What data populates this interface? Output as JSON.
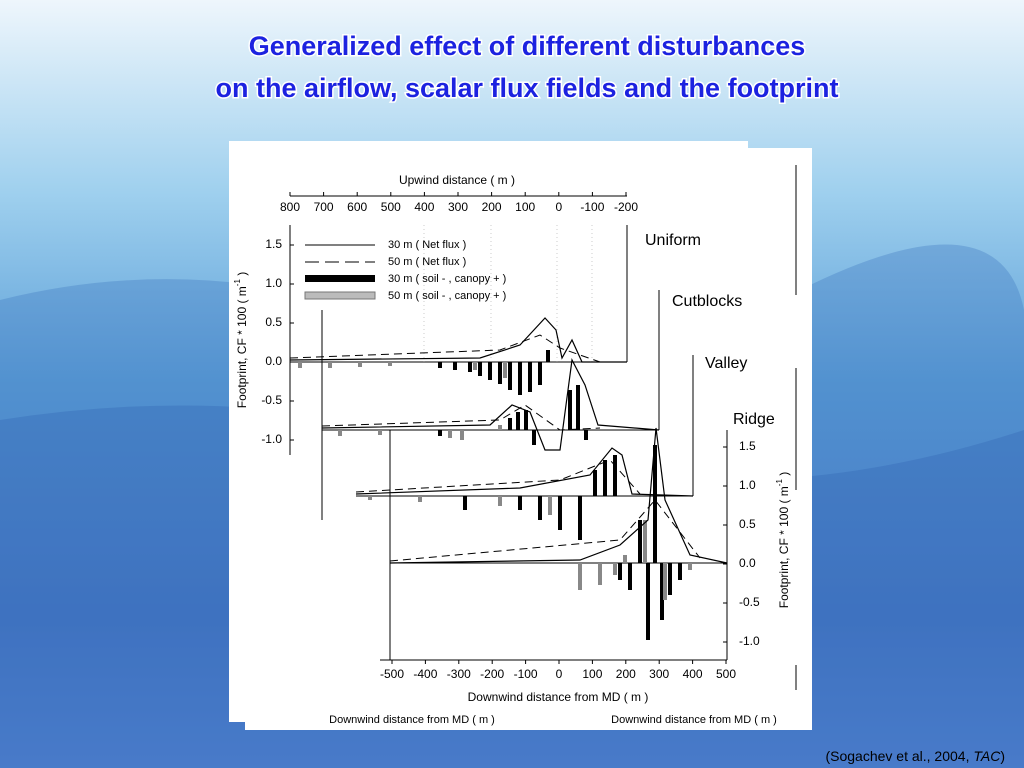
{
  "title": [
    "Generalized effect of different disturbances",
    "on the airflow, scalar flux fields and the footprint"
  ],
  "citation": {
    "before": "(Sogachev et al., 2004, ",
    "italic": "TAC",
    "after": ")"
  },
  "figure": {
    "top_axis_label": "Upwind distance ( m )",
    "top_ticks": [
      "800",
      "700",
      "600",
      "500",
      "400",
      "300",
      "200",
      "100",
      "0",
      "-100",
      "-200"
    ],
    "left_axis_label": {
      "text": "Footprint, CF * 100 ( m",
      "sup": "-1",
      "end": " )"
    },
    "left_ticks": [
      "1.5",
      "1.0",
      "0.5",
      "0.0",
      "-0.5",
      "-1.0"
    ],
    "right_axis_label": {
      "text": "Footprint, CF * 100 ( m",
      "sup": "-1",
      "end": " )"
    },
    "right_ticks": [
      "1.5",
      "1.0",
      "0.5",
      "0.0",
      "-0.5",
      "-1.0"
    ],
    "bottom_ticks": [
      "-500",
      "-400",
      "-300",
      "-200",
      "-100",
      "0",
      "100",
      "200",
      "300",
      "400",
      "500"
    ],
    "bottom_axis_label": "Downwind distance from MD ( m )",
    "back_labels": [
      "Downwind distance from MD ( m )",
      "Downwind distance from MD ( m )"
    ],
    "legend": [
      "30 m ( Net flux )",
      "50 m ( Net flux )",
      "30 m ( soil - , canopy + )",
      "50 m ( soil - , canopy + )"
    ],
    "panels": [
      "Uniform",
      "Cutblocks",
      "Valley",
      "Ridge"
    ]
  }
}
